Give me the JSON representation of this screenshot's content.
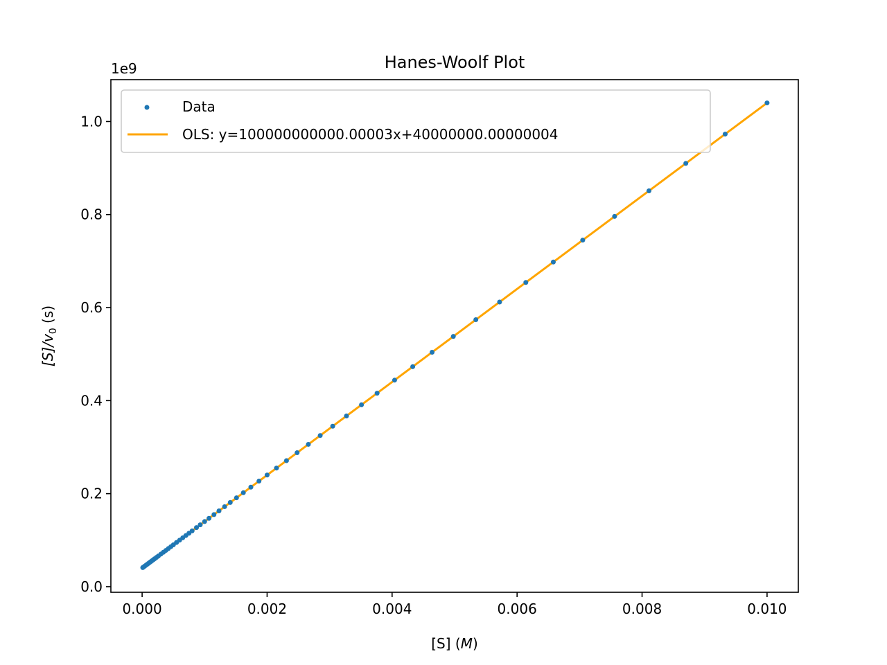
{
  "chart_data": {
    "type": "scatter",
    "title": "Hanes-Woolf Plot",
    "xlabel": "[S] (M)",
    "xlabel_parts": {
      "prefix": "[S] (",
      "var": "M",
      "suffix": ")"
    },
    "ylabel": "[S]/v0 (s)",
    "ylabel_parts": {
      "main": "[S]/v",
      "sub": "0",
      "suffix": " (s)"
    },
    "y_offset_label": "1e9",
    "xlim": [
      -0.0005,
      0.0105
    ],
    "ylim": [
      -0.012,
      1.09
    ],
    "xticks": [
      0.0,
      0.002,
      0.004,
      0.006,
      0.008,
      0.01
    ],
    "xtick_labels": [
      "0.000",
      "0.002",
      "0.004",
      "0.006",
      "0.008",
      "0.010"
    ],
    "yticks": [
      0.0,
      0.2,
      0.4,
      0.6,
      0.8,
      1.0
    ],
    "ytick_labels": [
      "0.0",
      "0.2",
      "0.4",
      "0.6",
      "0.8",
      "1.0"
    ],
    "grid": false,
    "legend_position": "top-left",
    "series": [
      {
        "name": "Data",
        "kind": "scatter",
        "color": "#1f77b4",
        "x": [
          1e-05,
          2e-05,
          4e-05,
          6e-05,
          8e-05,
          0.0001,
          0.00012,
          0.00014,
          0.00016,
          0.00018,
          0.0002,
          0.00023,
          0.00026,
          0.0003,
          0.00034,
          0.00038,
          0.00042,
          0.00046,
          0.0005,
          0.00055,
          0.0006,
          0.00065,
          0.0007,
          0.00075,
          0.0008,
          0.00087,
          0.00093,
          0.001,
          0.00107,
          0.00115,
          0.00123,
          0.00132,
          0.00141,
          0.00151,
          0.00162,
          0.00174,
          0.00187,
          0.002,
          0.00215,
          0.00231,
          0.00248,
          0.00266,
          0.00285,
          0.00305,
          0.00327,
          0.00351,
          0.00376,
          0.00404,
          0.00433,
          0.00464,
          0.00498,
          0.00534,
          0.00572,
          0.00614,
          0.00658,
          0.00705,
          0.00756,
          0.00811,
          0.0087,
          0.00933,
          0.01
        ],
        "y": [
          0.041,
          0.042,
          0.044,
          0.046,
          0.048,
          0.05,
          0.052,
          0.054,
          0.056,
          0.058,
          0.06,
          0.063,
          0.066,
          0.07,
          0.074,
          0.078,
          0.082,
          0.086,
          0.09,
          0.095,
          0.1,
          0.105,
          0.11,
          0.115,
          0.12,
          0.127,
          0.133,
          0.14,
          0.147,
          0.155,
          0.163,
          0.172,
          0.181,
          0.191,
          0.202,
          0.214,
          0.227,
          0.24,
          0.255,
          0.271,
          0.288,
          0.306,
          0.325,
          0.345,
          0.367,
          0.391,
          0.416,
          0.444,
          0.473,
          0.504,
          0.538,
          0.574,
          0.612,
          0.654,
          0.698,
          0.745,
          0.796,
          0.851,
          0.91,
          0.973,
          1.04
        ]
      },
      {
        "name": "OLS: y=100000000000.00003x+40000000.00000004",
        "kind": "line",
        "color": "#ffa500",
        "x": [
          1e-05,
          0.01
        ],
        "y": [
          0.041,
          1.04
        ]
      }
    ]
  }
}
